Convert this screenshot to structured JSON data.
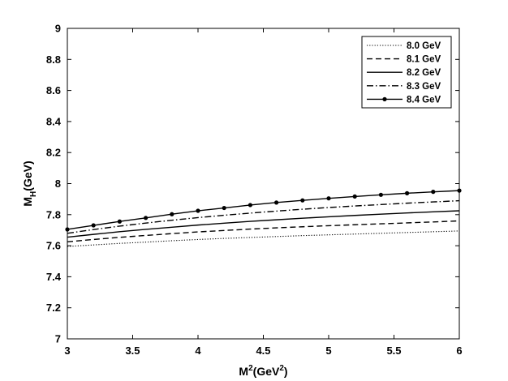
{
  "chart_data": {
    "type": "line",
    "xlabel": {
      "base": "M",
      "sup": "2",
      "open": "(GeV",
      "sup2": "2",
      "close": ")"
    },
    "ylabel": {
      "base": "M",
      "sub": "H",
      "rest": "(GeV)"
    },
    "xlim": [
      3,
      6
    ],
    "ylim": [
      7,
      9
    ],
    "xticks": [
      "3",
      "3.5",
      "4",
      "4.5",
      "5",
      "5.5",
      "6"
    ],
    "yticks": [
      "7",
      "7.2",
      "7.4",
      "7.6",
      "7.8",
      "8",
      "8.2",
      "8.4",
      "8.6",
      "8.8",
      "9"
    ],
    "grid": false,
    "legend_position": "top-right",
    "x": [
      3.0,
      3.2,
      3.4,
      3.6,
      3.8,
      4.0,
      4.2,
      4.4,
      4.6,
      4.8,
      5.0,
      5.2,
      5.4,
      5.6,
      5.8,
      6.0
    ],
    "series": [
      {
        "name": "8.0 GeV",
        "style": "dotted",
        "values": [
          7.595,
          7.605,
          7.615,
          7.623,
          7.632,
          7.64,
          7.647,
          7.653,
          7.659,
          7.665,
          7.67,
          7.675,
          7.68,
          7.685,
          7.69,
          7.695
        ]
      },
      {
        "name": "8.1 GeV",
        "style": "dashed",
        "values": [
          7.625,
          7.64,
          7.654,
          7.666,
          7.678,
          7.689,
          7.698,
          7.707,
          7.715,
          7.722,
          7.729,
          7.735,
          7.741,
          7.747,
          7.753,
          7.76
        ]
      },
      {
        "name": "8.2 GeV",
        "style": "solid",
        "values": [
          7.655,
          7.673,
          7.69,
          7.705,
          7.719,
          7.733,
          7.745,
          7.757,
          7.767,
          7.777,
          7.786,
          7.795,
          7.803,
          7.811,
          7.818,
          7.825
        ]
      },
      {
        "name": "8.3 GeV",
        "style": "dashdot",
        "values": [
          7.68,
          7.704,
          7.726,
          7.746,
          7.764,
          7.781,
          7.796,
          7.81,
          7.823,
          7.835,
          7.846,
          7.856,
          7.865,
          7.874,
          7.882,
          7.89
        ]
      },
      {
        "name": "8.4 GeV",
        "style": "solid-marker",
        "values": [
          7.705,
          7.731,
          7.756,
          7.779,
          7.803,
          7.825,
          7.843,
          7.862,
          7.878,
          7.892,
          7.905,
          7.917,
          7.928,
          7.938,
          7.947,
          7.955
        ]
      }
    ]
  }
}
